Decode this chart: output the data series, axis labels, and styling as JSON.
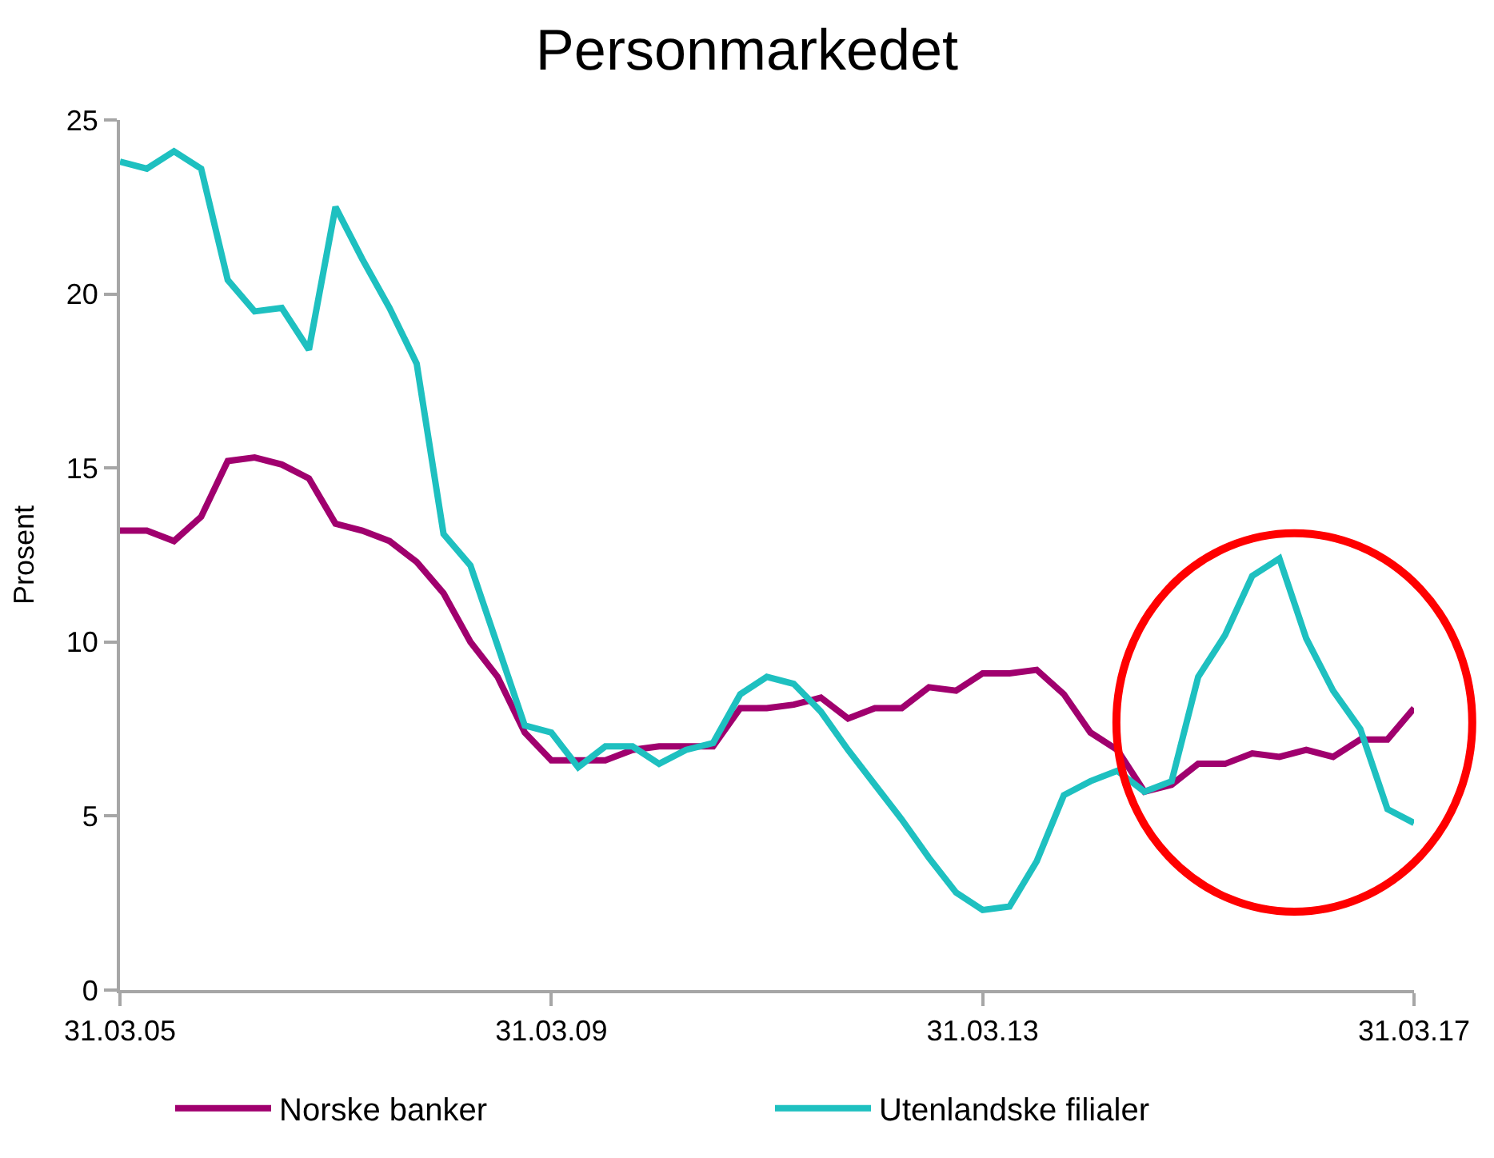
{
  "chart_data": {
    "type": "line",
    "title": "Personmarkedet",
    "ylabel": "Prosent",
    "x": [
      "2005-03-31",
      "2005-06-30",
      "2005-09-30",
      "2005-12-31",
      "2006-03-31",
      "2006-06-30",
      "2006-09-30",
      "2006-12-31",
      "2007-03-31",
      "2007-06-30",
      "2007-09-30",
      "2007-12-31",
      "2008-03-31",
      "2008-06-30",
      "2008-09-30",
      "2008-12-31",
      "2009-03-31",
      "2009-06-30",
      "2009-09-30",
      "2009-12-31",
      "2010-03-31",
      "2010-06-30",
      "2010-09-30",
      "2010-12-31",
      "2011-03-31",
      "2011-06-30",
      "2011-09-30",
      "2011-12-31",
      "2012-03-31",
      "2012-06-30",
      "2012-09-30",
      "2012-12-31",
      "2013-03-31",
      "2013-06-30",
      "2013-09-30",
      "2013-12-31",
      "2014-03-31",
      "2014-06-30",
      "2014-09-30",
      "2014-12-31",
      "2015-03-31",
      "2015-06-30",
      "2015-09-30",
      "2015-12-31",
      "2016-03-31",
      "2016-06-30",
      "2016-09-30",
      "2016-12-31",
      "2017-03-31"
    ],
    "series": [
      {
        "name": "Norske banker",
        "color": "#a0006e",
        "values": [
          13.2,
          13.2,
          12.9,
          13.6,
          15.2,
          15.3,
          15.1,
          14.7,
          13.4,
          13.2,
          12.9,
          12.3,
          11.4,
          10.0,
          9.0,
          7.4,
          6.6,
          6.6,
          6.6,
          6.9,
          7.0,
          7.0,
          7.0,
          8.1,
          8.1,
          8.2,
          8.4,
          7.8,
          8.1,
          8.1,
          8.7,
          8.6,
          9.1,
          9.1,
          9.2,
          8.5,
          7.4,
          6.9,
          5.7,
          5.9,
          6.5,
          6.5,
          6.8,
          6.7,
          6.9,
          6.7,
          7.2,
          7.2,
          8.1
        ]
      },
      {
        "name": "Utenlandske filialer",
        "color": "#1ec0c0",
        "values": [
          23.8,
          23.6,
          24.1,
          23.6,
          20.4,
          19.5,
          19.6,
          18.4,
          22.5,
          21.0,
          19.6,
          18.0,
          13.1,
          12.2,
          9.9,
          7.6,
          7.4,
          6.4,
          7.0,
          7.0,
          6.5,
          6.9,
          7.1,
          8.5,
          9.0,
          8.8,
          8.0,
          6.9,
          5.9,
          4.9,
          3.8,
          2.8,
          2.3,
          2.4,
          3.7,
          5.6,
          6.0,
          6.3,
          5.7,
          6.0,
          9.0,
          10.2,
          11.9,
          12.4,
          10.1,
          8.6,
          7.5,
          5.2,
          4.8
        ]
      }
    ],
    "xlim": [
      "2005-03-31",
      "2017-03-31"
    ],
    "xticks": [
      {
        "value": "2005-03-31",
        "label": "31.03.05"
      },
      {
        "value": "2009-03-31",
        "label": "31.03.09"
      },
      {
        "value": "2013-03-31",
        "label": "31.03.13"
      },
      {
        "value": "2017-03-31",
        "label": "31.03.17"
      }
    ],
    "ylim": [
      0,
      25
    ],
    "yticks": [
      0,
      5,
      10,
      15,
      20,
      25
    ],
    "legend": "bottom",
    "marker": "none",
    "line_style": "solid"
  }
}
